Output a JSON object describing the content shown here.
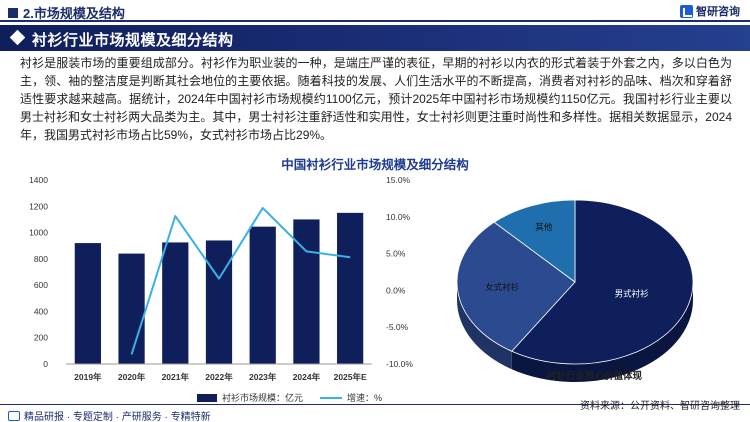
{
  "header": {
    "section": "2.市场规模及结构",
    "logo_text": "智研咨询"
  },
  "title_band": {
    "title": "衬衫行业市场规模及细分结构"
  },
  "intro": "衬衫是服装市场的重要组成部分。衬衫作为职业装的一种，是端庄严谨的表征，早期的衬衫以内衣的形式着装于外套之内，多以白色为主，领、袖的整洁度是判断其社会地位的主要依据。随着科技的发展、人们生活水平的不断提高，消费者对衬衫的品味、档次和穿着舒适性要求越来越高。据统计，2024年中国衬衫市场规模约1100亿元，预计2025年中国衬衫市场规模约1150亿元。我国衬衫行业主要以男士衬衫和女士衬衫两大品类为主。其中，男士衬衫注重舒适性和实用性，女士衬衫则更注重时尚性和多样性。据相关数据显示，2024年，我国男式衬衫市场占比59%，女式衬衫市场占比29%。",
  "chart_title": "中国衬衫行业市场规模及细分结构",
  "chart_data": [
    {
      "type": "bar",
      "categories": [
        "2019年",
        "2020年",
        "2021年",
        "2022年",
        "2023年",
        "2024年",
        "2025年E"
      ],
      "series": [
        {
          "name": "衬衫市场规模：亿元",
          "kind": "bar",
          "axis": "left",
          "color": "#0f1f5c",
          "values": [
            920,
            840,
            925,
            940,
            1045,
            1100,
            1150
          ]
        },
        {
          "name": "增速：%",
          "kind": "line",
          "axis": "right",
          "color": "#3ab0e8",
          "values": [
            null,
            -8.7,
            10.1,
            1.6,
            11.2,
            5.3,
            4.5
          ]
        }
      ],
      "y_left": {
        "ticks": [
          "0",
          "200",
          "400",
          "600",
          "800",
          "1000",
          "1200",
          "1400"
        ],
        "ylim": [
          0,
          1400
        ]
      },
      "y_right": {
        "ticks": [
          "-10.0%",
          "-5.0%",
          "0.0%",
          "5.0%",
          "10.0%",
          "15.0%"
        ],
        "ylim": [
          -10,
          15
        ]
      },
      "legend": [
        "衬衫市场规模：亿元",
        "增速：%"
      ],
      "legend_position": "bottom",
      "grid": false
    },
    {
      "type": "pie",
      "style": "3d",
      "labels": [
        "男式衬衫",
        "女式衬衫",
        "其他"
      ],
      "values": [
        59,
        29,
        12
      ],
      "colors": [
        "#0f1f5c",
        "#2c4a8f",
        "#1f6fae"
      ],
      "caption": "衬衫行业核心价值体现"
    }
  ],
  "footer": {
    "left": "精品研报 · 专题定制 · 产研服务 · 专精特新",
    "source": "资料来源：公开资料、智研咨询整理"
  }
}
